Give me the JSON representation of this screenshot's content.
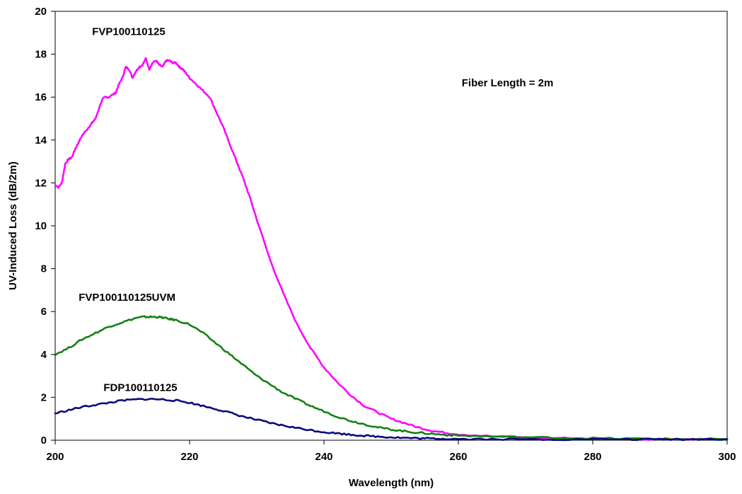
{
  "chart_data": {
    "type": "line",
    "title": "",
    "xlabel": "Wavelength (nm)",
    "ylabel": "UV-Induced Loss (dB/2m)",
    "xlim": [
      200,
      300
    ],
    "ylim": [
      0,
      20
    ],
    "xticks": [
      200,
      220,
      240,
      260,
      280,
      300
    ],
    "yticks": [
      0,
      2,
      4,
      6,
      8,
      10,
      12,
      14,
      16,
      18,
      20
    ],
    "grid": false,
    "legend": "none",
    "annotations": [
      {
        "text": "Fiber Length = 2m",
        "x": 260.5,
        "y": 16.5
      }
    ],
    "series": [
      {
        "name": "FVP100110125",
        "color": "#FF00FF",
        "label_pos": {
          "x": 205.5,
          "y": 18.9
        },
        "x": [
          200,
          200.5,
          201,
          201.5,
          202,
          202.5,
          203,
          203.5,
          204,
          205,
          205.5,
          206,
          207,
          207.5,
          208,
          209,
          209.5,
          210,
          210.5,
          211,
          211.5,
          212,
          212.5,
          213,
          213.5,
          214,
          214.5,
          215,
          215.5,
          216,
          216.5,
          217,
          217.5,
          218,
          218.5,
          219,
          219.5,
          220,
          221,
          222,
          223,
          224,
          225,
          226,
          227,
          228,
          229,
          230,
          232,
          234,
          236,
          238,
          240,
          242,
          244,
          246,
          248,
          250,
          252,
          254,
          256,
          258,
          260,
          265,
          270,
          275,
          280,
          285,
          290,
          295,
          300
        ],
        "y": [
          11.9,
          11.8,
          12.0,
          12.9,
          13.1,
          13.2,
          13.6,
          13.9,
          14.2,
          14.6,
          14.8,
          15.0,
          15.9,
          16.0,
          16.0,
          16.2,
          16.6,
          16.9,
          17.4,
          17.3,
          16.9,
          17.2,
          17.4,
          17.5,
          17.8,
          17.3,
          17.6,
          17.7,
          17.5,
          17.4,
          17.7,
          17.7,
          17.6,
          17.6,
          17.4,
          17.3,
          17.1,
          16.9,
          16.6,
          16.3,
          16.0,
          15.3,
          14.6,
          13.8,
          13.0,
          12.2,
          11.3,
          10.3,
          8.4,
          6.8,
          5.4,
          4.3,
          3.4,
          2.7,
          2.1,
          1.6,
          1.3,
          1.0,
          0.8,
          0.6,
          0.45,
          0.35,
          0.28,
          0.18,
          0.12,
          0.1,
          0.08,
          0.06,
          0.05,
          0.05,
          0.05
        ]
      },
      {
        "name": "FVP100110125UVM",
        "color": "#138013",
        "label_pos": {
          "x": 203.5,
          "y": 6.5
        },
        "x": [
          200,
          202,
          204,
          206,
          208,
          210,
          212,
          213,
          214,
          215,
          216,
          217,
          218,
          220,
          222,
          224,
          226,
          228,
          230,
          232,
          234,
          236,
          238,
          240,
          242,
          244,
          246,
          248,
          250,
          252,
          254,
          256,
          258,
          260,
          265,
          270,
          275,
          280,
          285,
          290,
          295,
          300
        ],
        "y": [
          4.0,
          4.3,
          4.7,
          5.0,
          5.3,
          5.5,
          5.7,
          5.75,
          5.75,
          5.75,
          5.72,
          5.65,
          5.6,
          5.4,
          5.0,
          4.5,
          4.0,
          3.5,
          3.0,
          2.6,
          2.2,
          1.9,
          1.6,
          1.35,
          1.1,
          0.9,
          0.75,
          0.6,
          0.5,
          0.42,
          0.35,
          0.3,
          0.25,
          0.22,
          0.17,
          0.14,
          0.11,
          0.09,
          0.07,
          0.06,
          0.05,
          0.05
        ]
      },
      {
        "name": "FDP100110125",
        "color": "#0A0A80",
        "label_pos": {
          "x": 207.2,
          "y": 2.3
        },
        "x": [
          200,
          202,
          204,
          206,
          208,
          210,
          212,
          214,
          216,
          218,
          220,
          222,
          224,
          226,
          228,
          230,
          232,
          234,
          236,
          238,
          240,
          242,
          244,
          246,
          248,
          250,
          252,
          254,
          256,
          258,
          260,
          265,
          270,
          275,
          280,
          285,
          290,
          295,
          300
        ],
        "y": [
          1.25,
          1.4,
          1.55,
          1.65,
          1.75,
          1.85,
          1.9,
          1.92,
          1.9,
          1.85,
          1.75,
          1.6,
          1.45,
          1.28,
          1.1,
          0.95,
          0.8,
          0.68,
          0.57,
          0.47,
          0.38,
          0.32,
          0.26,
          0.21,
          0.17,
          0.14,
          0.11,
          0.09,
          0.08,
          0.07,
          0.06,
          0.05,
          0.04,
          0.04,
          0.04,
          0.04,
          0.04,
          0.04,
          0.05
        ]
      }
    ]
  }
}
